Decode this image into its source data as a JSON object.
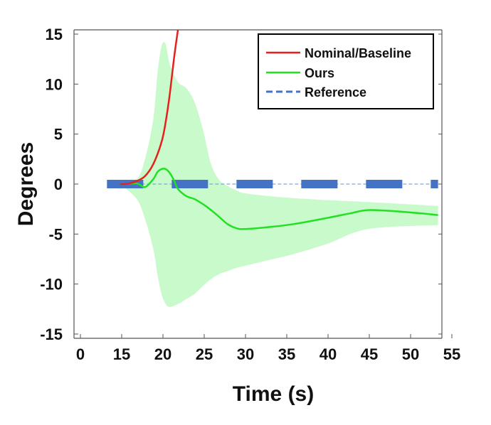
{
  "chart_data": {
    "type": "line",
    "title": "",
    "xlabel": "Time (s)",
    "ylabel": "Degrees",
    "x_tick_labels": [
      "0",
      "15",
      "20",
      "25",
      "30",
      "35",
      "40",
      "45",
      "50",
      "55"
    ],
    "y_tick_labels": [
      "15",
      "10",
      "5",
      "0",
      "-5",
      "-10",
      "-15"
    ],
    "y_ticks": [
      15,
      10,
      5,
      0,
      -5,
      -10,
      -15
    ],
    "ylim": [
      -15,
      15
    ],
    "legend_position": "top-right",
    "series": [
      {
        "name": "Nominal/Baseline",
        "color": "#e8201c",
        "style": "solid",
        "t": [
          15,
          16,
          17,
          18,
          19,
          20,
          20.5,
          21,
          21.5,
          22
        ],
        "values": [
          0,
          0.05,
          0.3,
          0.8,
          2.0,
          4.2,
          6.2,
          9.0,
          12.5,
          15.5
        ]
      },
      {
        "name": "Ours",
        "color": "#22e022",
        "style": "solid",
        "t": [
          15,
          17,
          18,
          19,
          19.5,
          20,
          20.5,
          21,
          21.5,
          22,
          23,
          24,
          25,
          26,
          27,
          28,
          29,
          30,
          33,
          36,
          40,
          43,
          45,
          48,
          51,
          53.5
        ],
        "values": [
          0,
          0.05,
          -0.3,
          0.5,
          1.2,
          1.5,
          1.5,
          1.1,
          0.4,
          -0.5,
          -1.2,
          -1.5,
          -2.0,
          -2.6,
          -3.3,
          -4.0,
          -4.4,
          -4.5,
          -4.3,
          -4.0,
          -3.4,
          -2.9,
          -2.6,
          -2.7,
          -2.9,
          -3.1
        ]
      },
      {
        "name": "Reference",
        "color": "#4472c4",
        "style": "dashed",
        "t": [
          10,
          53.5
        ],
        "values": [
          0,
          0
        ]
      }
    ],
    "bands": [
      {
        "series": "Ours",
        "color": "#c9facc",
        "t": [
          15,
          17,
          18,
          19,
          19.5,
          20,
          20.5,
          21,
          22,
          23,
          24,
          25,
          26,
          27,
          28,
          29,
          30,
          33,
          36,
          40,
          45,
          53.5
        ],
        "upper": [
          0,
          0.5,
          2.5,
          6.5,
          11.0,
          13.8,
          14.0,
          12.0,
          10.2,
          9.6,
          8.2,
          5.5,
          2.0,
          0.4,
          -0.2,
          -0.6,
          -0.9,
          -1.2,
          -1.4,
          -1.6,
          -1.8,
          -2.2
        ],
        "lower": [
          0,
          -1.5,
          -3.5,
          -6.5,
          -9.0,
          -11.0,
          -12.0,
          -12.3,
          -12.0,
          -11.5,
          -11.0,
          -10.2,
          -9.5,
          -9.0,
          -8.7,
          -8.4,
          -8.2,
          -7.6,
          -7.0,
          -6.0,
          -4.5,
          -4.1
        ]
      }
    ]
  }
}
